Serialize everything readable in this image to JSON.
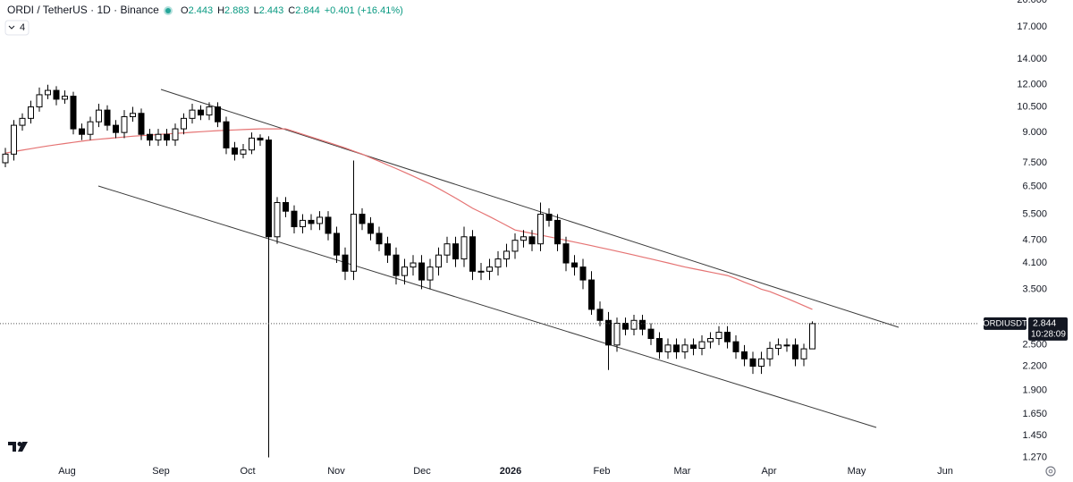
{
  "chart_data": {
    "type": "candlestick",
    "title": "ORDI / TetherUS · 1D · Binance",
    "ohlc_legend": [
      {
        "key": "O",
        "value": 2.443
      },
      {
        "key": "H",
        "value": 2.883
      },
      {
        "key": "L",
        "value": 2.443
      },
      {
        "key": "C",
        "value": 2.844
      }
    ],
    "change": "+0.401 (+16.41%)",
    "indicator_count": "4",
    "log_scale": true,
    "up_color": "#ffffff",
    "down_color": "#000000",
    "x_labels": [
      "Aug",
      "Sep",
      "Oct",
      "Nov",
      "Dec",
      "2026",
      "Feb",
      "Mar",
      "Apr",
      "May",
      "Jun"
    ],
    "ylim": [
      1.2,
      20
    ],
    "yticks": [
      {
        "value": 1.27,
        "label": "1.270"
      },
      {
        "value": 1.45,
        "label": "1.450"
      },
      {
        "value": 1.65,
        "label": "1.650"
      },
      {
        "value": 1.9,
        "label": "1.900"
      },
      {
        "value": 2.2,
        "label": "2.200"
      },
      {
        "value": 2.5,
        "label": "2.500"
      },
      {
        "value": 3.5,
        "label": "3.500"
      },
      {
        "value": 4.1,
        "label": "4.100"
      },
      {
        "value": 4.7,
        "label": "4.700"
      },
      {
        "value": 5.5,
        "label": "5.500"
      },
      {
        "value": 6.5,
        "label": "6.500"
      },
      {
        "value": 7.5,
        "label": "7.500"
      },
      {
        "value": 9,
        "label": "9.000"
      },
      {
        "value": 10.5,
        "label": "10.500"
      },
      {
        "value": 12,
        "label": "12.000"
      },
      {
        "value": 14,
        "label": "14.000"
      },
      {
        "value": 17,
        "label": "17.000"
      },
      {
        "value": 20,
        "label": "20.000"
      }
    ],
    "open": [
      7.5,
      7.9,
      9.4,
      9.8,
      10.5,
      11.3,
      11.6,
      11.0,
      11.2,
      9.2,
      8.9,
      9.6,
      10.3,
      9.4,
      9.0,
      9.9,
      10.1,
      8.9,
      8.6,
      8.9,
      8.6,
      9.2,
      9.8,
      10.3,
      10.0,
      10.5,
      9.6,
      8.2,
      7.9,
      8.1,
      8.7,
      8.6,
      4.8,
      5.9,
      5.6,
      5.1,
      5.3,
      5.2,
      5.4,
      4.9,
      4.3,
      3.9,
      5.5,
      5.2,
      4.9,
      4.6,
      4.3,
      3.8,
      4.0,
      4.1,
      3.7,
      4.0,
      4.3,
      4.6,
      4.2,
      4.8,
      3.9,
      3.9,
      4.0,
      4.2,
      4.4,
      4.7,
      4.8,
      4.6,
      5.5,
      5.3,
      4.6,
      4.1,
      4.0,
      3.7,
      3.1,
      2.9,
      2.5,
      2.85,
      2.75,
      2.9,
      2.75,
      2.6,
      2.4,
      2.5,
      2.4,
      2.5,
      2.45,
      2.55,
      2.6,
      2.7,
      2.55,
      2.4,
      2.3,
      2.2,
      2.3,
      2.45,
      2.5,
      2.5,
      2.3,
      2.443
    ],
    "high": [
      8.2,
      9.7,
      10.1,
      10.9,
      11.8,
      12.0,
      11.9,
      11.6,
      11.5,
      9.5,
      9.9,
      10.7,
      10.6,
      9.7,
      10.3,
      10.5,
      10.4,
      9.2,
      9.2,
      9.2,
      9.5,
      10.1,
      10.7,
      10.6,
      10.8,
      10.8,
      9.9,
      8.5,
      8.4,
      9.0,
      8.9,
      8.8,
      6.1,
      6.1,
      5.8,
      5.5,
      5.5,
      5.6,
      5.6,
      5.1,
      4.5,
      7.6,
      5.7,
      5.4,
      5.1,
      4.8,
      4.5,
      4.2,
      4.3,
      4.3,
      4.2,
      4.5,
      4.8,
      4.8,
      5.1,
      5.0,
      4.1,
      4.2,
      4.4,
      4.6,
      4.9,
      5.0,
      5.0,
      5.9,
      5.7,
      5.5,
      4.8,
      4.3,
      4.2,
      3.9,
      3.25,
      3.05,
      2.95,
      2.95,
      3.0,
      3.0,
      2.85,
      2.7,
      2.6,
      2.6,
      2.6,
      2.6,
      2.65,
      2.7,
      2.8,
      2.8,
      2.65,
      2.5,
      2.4,
      2.4,
      2.55,
      2.6,
      2.6,
      2.6,
      2.52,
      2.883
    ],
    "low": [
      7.3,
      7.6,
      9.1,
      9.5,
      10.2,
      11.0,
      10.6,
      10.7,
      8.9,
      8.6,
      8.6,
      9.3,
      9.1,
      8.7,
      8.7,
      9.6,
      8.6,
      8.3,
      8.3,
      8.3,
      8.3,
      8.9,
      9.5,
      9.7,
      9.7,
      9.3,
      7.9,
      7.6,
      7.7,
      7.9,
      8.3,
      1.27,
      4.6,
      5.4,
      4.9,
      4.9,
      5.0,
      5.0,
      4.7,
      4.1,
      3.7,
      3.7,
      5.0,
      4.7,
      4.4,
      4.1,
      3.6,
      3.6,
      3.8,
      3.5,
      3.5,
      3.8,
      4.1,
      4.0,
      4.0,
      3.7,
      3.7,
      3.7,
      3.8,
      4.0,
      4.2,
      4.5,
      4.4,
      4.4,
      5.1,
      4.4,
      3.9,
      3.8,
      3.5,
      3.0,
      2.8,
      2.15,
      2.4,
      2.65,
      2.65,
      2.65,
      2.5,
      2.3,
      2.3,
      2.3,
      2.3,
      2.35,
      2.35,
      2.45,
      2.5,
      2.45,
      2.3,
      2.2,
      2.1,
      2.1,
      2.2,
      2.35,
      2.4,
      2.2,
      2.2,
      2.443
    ],
    "close": [
      7.9,
      9.4,
      9.8,
      10.5,
      11.3,
      11.6,
      11.0,
      11.2,
      9.2,
      8.9,
      9.6,
      10.3,
      9.4,
      9.0,
      9.9,
      10.1,
      8.9,
      8.6,
      8.9,
      8.6,
      9.2,
      9.8,
      10.3,
      10.0,
      10.5,
      9.6,
      8.2,
      7.9,
      8.1,
      8.7,
      8.6,
      4.8,
      5.9,
      5.6,
      5.1,
      5.3,
      5.2,
      5.4,
      4.9,
      4.3,
      3.9,
      5.5,
      5.2,
      4.9,
      4.6,
      4.3,
      3.8,
      4.0,
      4.1,
      3.7,
      4.0,
      4.3,
      4.6,
      4.2,
      4.8,
      3.9,
      3.9,
      4.0,
      4.2,
      4.4,
      4.7,
      4.8,
      4.6,
      5.5,
      5.3,
      4.6,
      4.1,
      4.0,
      3.7,
      3.1,
      2.9,
      2.5,
      2.85,
      2.75,
      2.9,
      2.75,
      2.6,
      2.4,
      2.5,
      2.4,
      2.5,
      2.45,
      2.55,
      2.6,
      2.7,
      2.55,
      2.4,
      2.3,
      2.2,
      2.3,
      2.45,
      2.5,
      2.5,
      2.3,
      2.443,
      2.844
    ],
    "moving_average": {
      "color": "#e57373",
      "values": [
        7.95,
        8.02,
        8.09,
        8.16,
        8.23,
        8.3,
        8.36,
        8.42,
        8.48,
        8.54,
        8.6,
        8.64,
        8.68,
        8.72,
        8.76,
        8.8,
        8.83,
        8.86,
        8.89,
        8.92,
        8.95,
        8.98,
        9.01,
        9.04,
        9.07,
        9.1,
        9.12,
        9.14,
        9.16,
        9.18,
        9.2,
        9.2,
        9.2,
        9.2,
        9.05,
        8.9,
        8.76,
        8.62,
        8.48,
        8.34,
        8.2,
        8.05,
        7.9,
        7.73,
        7.57,
        7.4,
        7.24,
        7.08,
        6.92,
        6.76,
        6.6,
        6.42,
        6.24,
        6.06,
        5.88,
        5.7,
        5.56,
        5.42,
        5.28,
        5.14,
        5.0,
        4.95,
        4.9,
        4.85,
        4.8,
        4.75,
        4.7,
        4.65,
        4.6,
        4.55,
        4.5,
        4.45,
        4.4,
        4.35,
        4.3,
        4.25,
        4.2,
        4.15,
        4.1,
        4.05,
        4.0,
        3.96,
        3.92,
        3.88,
        3.84,
        3.8,
        3.73,
        3.65,
        3.58,
        3.5,
        3.45,
        3.38,
        3.31,
        3.24,
        3.17,
        3.1
      ]
    },
    "last_price": {
      "symbol": "ORDIUSDT",
      "value": 2.844,
      "countdown": "10:28:09"
    }
  }
}
